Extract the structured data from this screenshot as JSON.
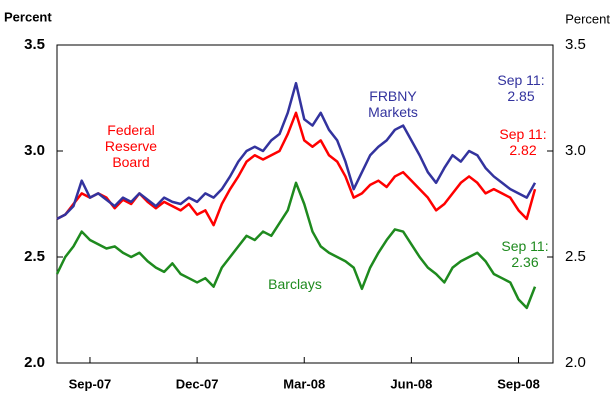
{
  "chart_data": {
    "type": "line",
    "ylabel": "Percent",
    "y2label": "Percent",
    "categories": [
      null,
      null,
      null,
      null,
      "Sep-07",
      null,
      null,
      null,
      null,
      null,
      null,
      null,
      null,
      null,
      null,
      null,
      null,
      "Dec-07",
      null,
      null,
      null,
      null,
      null,
      null,
      null,
      null,
      null,
      null,
      null,
      null,
      "Mar-08",
      null,
      null,
      null,
      null,
      null,
      null,
      null,
      null,
      null,
      null,
      null,
      null,
      "Jun-08",
      null,
      null,
      null,
      null,
      null,
      null,
      null,
      null,
      null,
      null,
      null,
      null,
      "Sep-08",
      null,
      null
    ],
    "series": [
      {
        "name": "FRBNY Markets",
        "color": "#33339e",
        "values": [
          2.68,
          2.7,
          2.74,
          2.86,
          2.78,
          2.8,
          2.77,
          2.74,
          2.78,
          2.76,
          2.8,
          2.77,
          2.74,
          2.78,
          2.76,
          2.75,
          2.78,
          2.76,
          2.8,
          2.78,
          2.82,
          2.88,
          2.95,
          3.0,
          3.02,
          3.0,
          3.05,
          3.08,
          3.18,
          3.32,
          3.15,
          3.12,
          3.18,
          3.1,
          3.05,
          2.95,
          2.82,
          2.9,
          2.98,
          3.02,
          3.05,
          3.1,
          3.12,
          3.05,
          2.98,
          2.9,
          2.85,
          2.92,
          2.98,
          2.95,
          3.0,
          2.98,
          2.92,
          2.88,
          2.85,
          2.82,
          2.8,
          2.78,
          2.85
        ]
      },
      {
        "name": "Federal Reserve Board",
        "color": "#ff0000",
        "values": [
          2.68,
          2.7,
          2.75,
          2.8,
          2.78,
          2.8,
          2.78,
          2.73,
          2.77,
          2.75,
          2.8,
          2.76,
          2.73,
          2.76,
          2.74,
          2.72,
          2.75,
          2.7,
          2.72,
          2.65,
          2.75,
          2.82,
          2.88,
          2.95,
          2.98,
          2.96,
          2.98,
          3.0,
          3.08,
          3.18,
          3.05,
          3.02,
          3.05,
          2.98,
          2.95,
          2.88,
          2.78,
          2.8,
          2.84,
          2.86,
          2.83,
          2.88,
          2.9,
          2.86,
          2.82,
          2.78,
          2.72,
          2.75,
          2.8,
          2.85,
          2.88,
          2.85,
          2.8,
          2.82,
          2.8,
          2.78,
          2.72,
          2.68,
          2.82
        ]
      },
      {
        "name": "Barclays",
        "color": "#1e8a1e",
        "values": [
          2.42,
          2.5,
          2.55,
          2.62,
          2.58,
          2.56,
          2.54,
          2.55,
          2.52,
          2.5,
          2.52,
          2.48,
          2.45,
          2.43,
          2.47,
          2.42,
          2.4,
          2.38,
          2.4,
          2.36,
          2.45,
          2.5,
          2.55,
          2.6,
          2.58,
          2.62,
          2.6,
          2.66,
          2.72,
          2.85,
          2.75,
          2.62,
          2.55,
          2.52,
          2.5,
          2.48,
          2.45,
          2.35,
          2.45,
          2.52,
          2.58,
          2.63,
          2.62,
          2.56,
          2.5,
          2.45,
          2.42,
          2.38,
          2.45,
          2.48,
          2.5,
          2.52,
          2.48,
          2.42,
          2.4,
          2.38,
          2.3,
          2.26,
          2.36
        ]
      }
    ],
    "end_date_label": "Sep 11:",
    "ylim": [
      2.0,
      3.5
    ],
    "yticks": [
      {
        "value": 2,
        "label": "2.0"
      },
      2.5,
      {
        "value": 3,
        "label": "3.0"
      },
      3.5
    ],
    "y2lim": [
      2.0,
      3.5
    ],
    "y2ticks": [
      {
        "value": 2,
        "label": "2.0"
      },
      2.5,
      {
        "value": 3,
        "label": "3.0"
      },
      3.5
    ],
    "grid": false
  }
}
